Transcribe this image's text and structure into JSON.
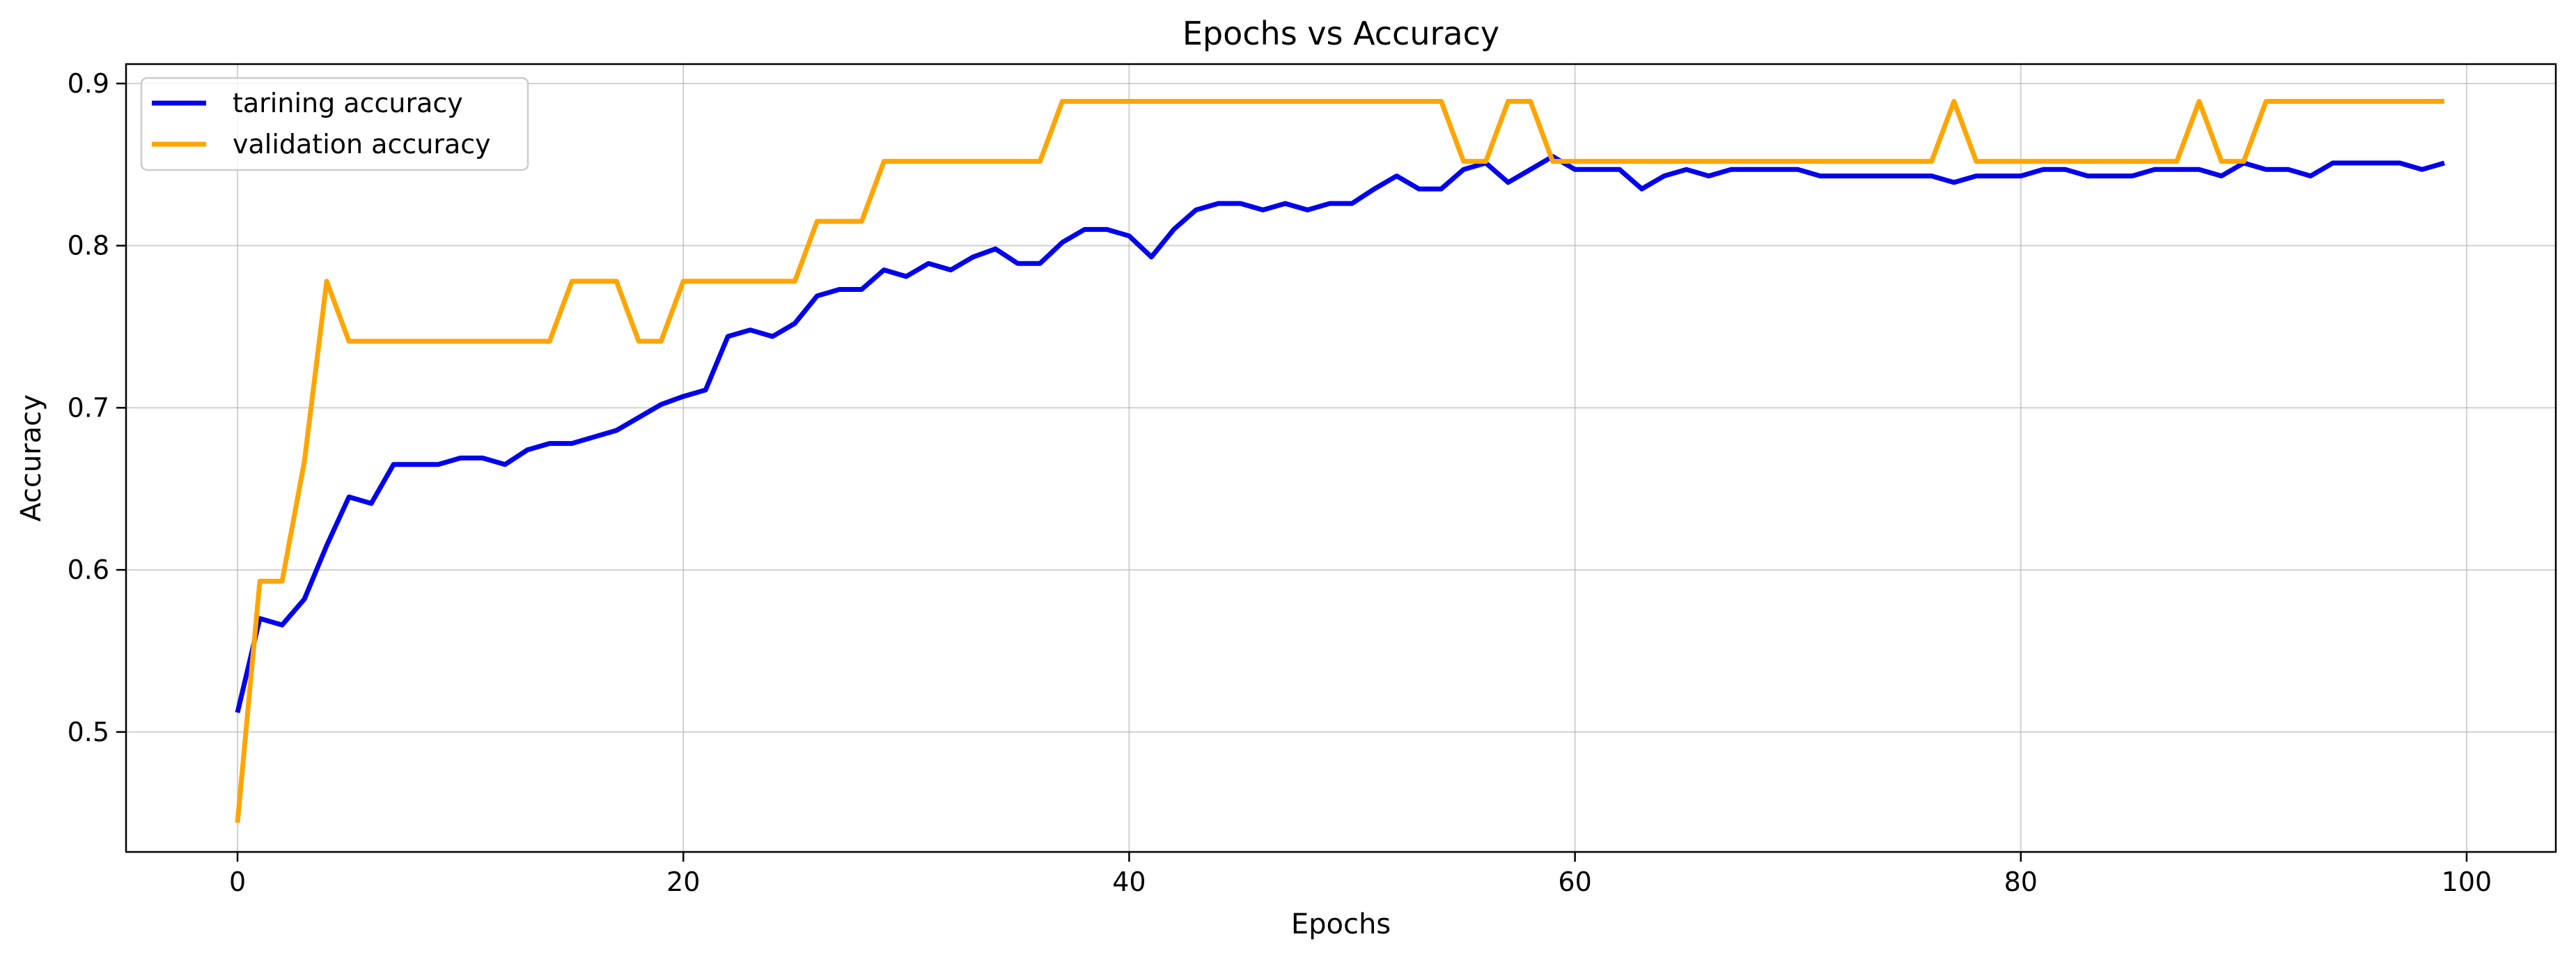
{
  "chart_data": {
    "type": "line",
    "title": "Epochs vs Accuracy",
    "xlabel": "Epochs",
    "ylabel": "Accuracy",
    "xlim": [
      -5,
      104
    ],
    "ylim": [
      0.426,
      0.912
    ],
    "xticks": [
      0,
      20,
      40,
      60,
      80,
      100
    ],
    "xtick_labels": [
      "0",
      "20",
      "40",
      "60",
      "80",
      "100"
    ],
    "yticks": [
      0.5,
      0.6,
      0.7,
      0.8,
      0.9
    ],
    "ytick_labels": [
      "0.5",
      "0.6",
      "0.7",
      "0.8",
      "0.9"
    ],
    "grid": true,
    "legend_position": "top-left",
    "series": [
      {
        "name": "tarining accuracy",
        "color": "#0000ee",
        "values": [
          0.512,
          0.57,
          0.566,
          0.582,
          0.615,
          0.645,
          0.641,
          0.665,
          0.665,
          0.665,
          0.669,
          0.669,
          0.665,
          0.674,
          0.678,
          0.678,
          0.682,
          0.686,
          0.694,
          0.702,
          0.707,
          0.711,
          0.744,
          0.748,
          0.744,
          0.752,
          0.769,
          0.773,
          0.773,
          0.785,
          0.781,
          0.789,
          0.785,
          0.793,
          0.798,
          0.789,
          0.789,
          0.802,
          0.81,
          0.81,
          0.806,
          0.793,
          0.81,
          0.822,
          0.826,
          0.826,
          0.822,
          0.826,
          0.822,
          0.826,
          0.826,
          0.835,
          0.843,
          0.835,
          0.835,
          0.847,
          0.851,
          0.839,
          0.847,
          0.855,
          0.847,
          0.847,
          0.847,
          0.835,
          0.843,
          0.847,
          0.843,
          0.847,
          0.847,
          0.847,
          0.847,
          0.843,
          0.843,
          0.843,
          0.843,
          0.843,
          0.843,
          0.839,
          0.843,
          0.843,
          0.843,
          0.847,
          0.847,
          0.843,
          0.843,
          0.843,
          0.847,
          0.847,
          0.847,
          0.843,
          0.851,
          0.847,
          0.847,
          0.843,
          0.851,
          0.851,
          0.851,
          0.851,
          0.847,
          0.851
        ]
      },
      {
        "name": "validation accuracy",
        "color": "#ffa500",
        "values": [
          0.444,
          0.593,
          0.593,
          0.667,
          0.778,
          0.741,
          0.741,
          0.741,
          0.741,
          0.741,
          0.741,
          0.741,
          0.741,
          0.741,
          0.741,
          0.778,
          0.778,
          0.778,
          0.741,
          0.741,
          0.778,
          0.778,
          0.778,
          0.778,
          0.778,
          0.778,
          0.815,
          0.815,
          0.815,
          0.852,
          0.852,
          0.852,
          0.852,
          0.852,
          0.852,
          0.852,
          0.852,
          0.889,
          0.889,
          0.889,
          0.889,
          0.889,
          0.889,
          0.889,
          0.889,
          0.889,
          0.889,
          0.889,
          0.889,
          0.889,
          0.889,
          0.889,
          0.889,
          0.889,
          0.889,
          0.852,
          0.852,
          0.889,
          0.889,
          0.852,
          0.852,
          0.852,
          0.852,
          0.852,
          0.852,
          0.852,
          0.852,
          0.852,
          0.852,
          0.852,
          0.852,
          0.852,
          0.852,
          0.852,
          0.852,
          0.852,
          0.852,
          0.889,
          0.852,
          0.852,
          0.852,
          0.852,
          0.852,
          0.852,
          0.852,
          0.852,
          0.852,
          0.852,
          0.889,
          0.852,
          0.852,
          0.889,
          0.889,
          0.889,
          0.889,
          0.889,
          0.889,
          0.889,
          0.889,
          0.889
        ]
      }
    ]
  }
}
